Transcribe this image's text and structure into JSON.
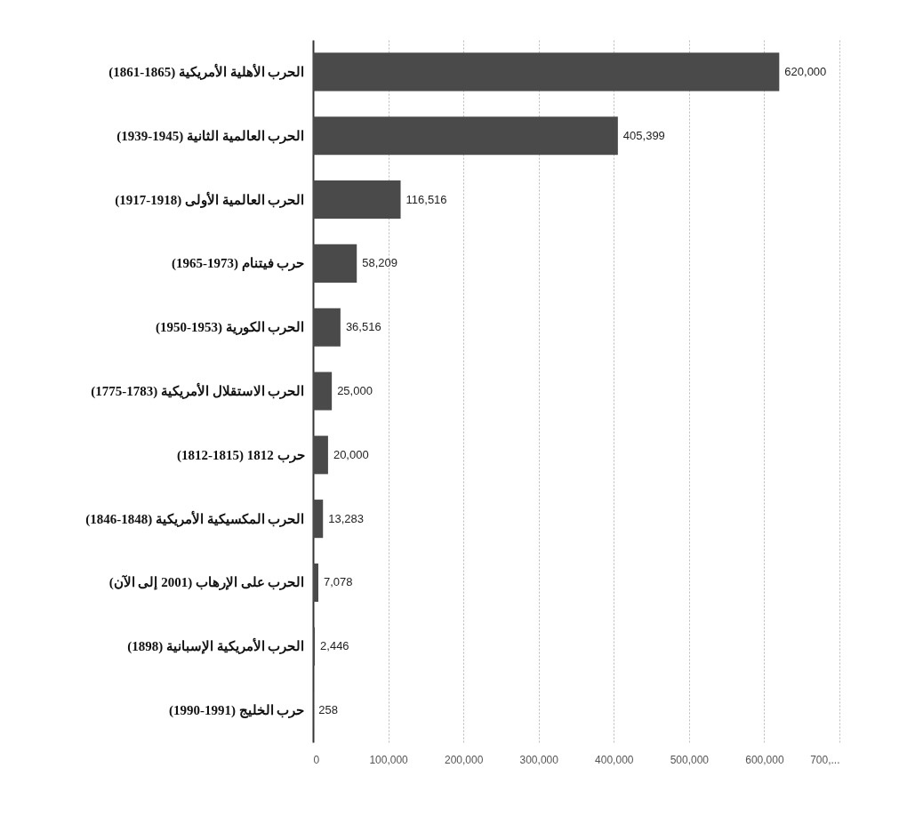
{
  "chart_data": {
    "type": "bar",
    "orientation": "horizontal",
    "categories": [
      "الحرب الأهلية الأمريكية (1865-1861)",
      "الحرب العالمية الثانية (1945-1939)",
      "الحرب العالمية الأولى (1918-1917)",
      "حرب فيتنام (1973-1965)",
      "الحرب الكورية (1953-1950)",
      "الحرب الاستقلال الأمريكية (1783-1775)",
      "حرب 1812 (1815-1812)",
      "الحرب المكسيكية الأمريكية (1848-1846)",
      "الحرب على الإرهاب (2001 إلى الآن)",
      "الحرب الأمريكية الإسبانية (1898)",
      "حرب الخليج (1991-1990)"
    ],
    "values": [
      620000,
      405399,
      116516,
      58209,
      36516,
      25000,
      20000,
      13283,
      7078,
      2446,
      258
    ],
    "value_labels": [
      "620,000",
      "405,399",
      "116,516",
      "58,209",
      "36,516",
      "25,000",
      "20,000",
      "13,283",
      "7,078",
      "2,446",
      "258"
    ],
    "color": "#4a4a4a",
    "xlim": [
      0,
      700000
    ],
    "xticks": [
      0,
      {
        "value": 100000,
        "label": "100,000"
      },
      {
        "value": 200000,
        "label": "200,000"
      },
      {
        "value": 300000,
        "label": "300,000"
      },
      {
        "value": 400000,
        "label": "400,000"
      },
      {
        "value": 500000,
        "label": "500,000"
      },
      {
        "value": 600000,
        "label": "600,000"
      },
      {
        "value": 700000,
        "label": "700,..."
      }
    ],
    "grid": "x"
  }
}
